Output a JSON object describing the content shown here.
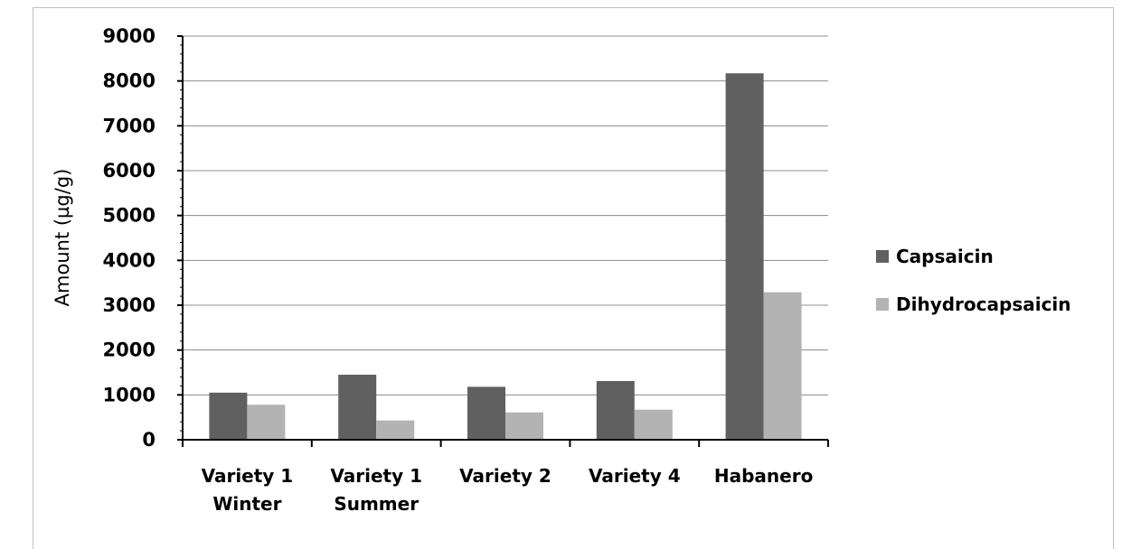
{
  "chart_data": {
    "type": "bar",
    "title": "",
    "xlabel": "",
    "ylabel": "Amount (µg/g)",
    "ylim": [
      0,
      9000
    ],
    "yticks": [
      0,
      1000,
      2000,
      3000,
      4000,
      5000,
      6000,
      7000,
      8000,
      9000
    ],
    "categories": [
      [
        "Variety 1",
        "Winter"
      ],
      [
        "Variety 1",
        "Summer"
      ],
      [
        "Variety 2"
      ],
      [
        "Variety 4"
      ],
      [
        "Habanero"
      ]
    ],
    "series": [
      {
        "name": "Capsaicin",
        "color": "#606060",
        "values": [
          1050,
          1450,
          1180,
          1310,
          8170
        ]
      },
      {
        "name": "Dihydrocapsaicin",
        "color": "#b3b3b3",
        "values": [
          780,
          430,
          610,
          670,
          3290
        ]
      }
    ],
    "grid": true,
    "legend": "right"
  }
}
